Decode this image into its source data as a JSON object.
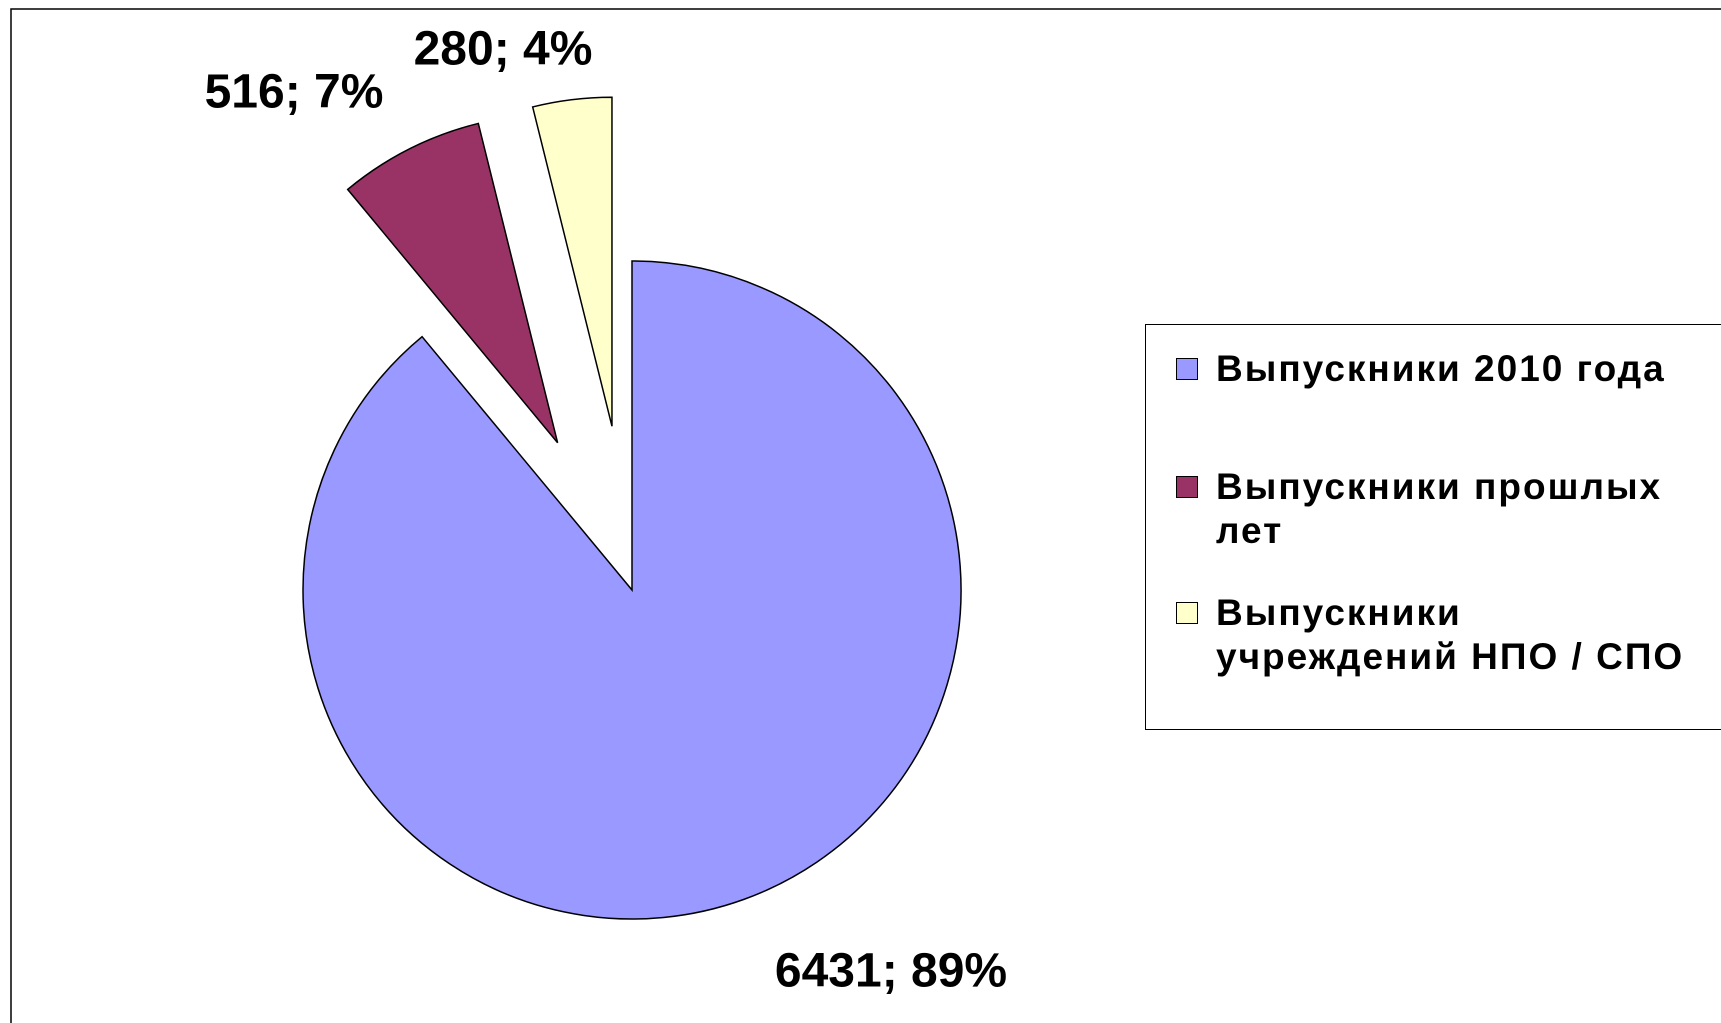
{
  "chart_data": {
    "type": "pie",
    "categories": [
      "Выпускники 2010 года",
      "Выпускники прошлых лет",
      "Выпускники учреждений НПО / СПО"
    ],
    "values": [
      6431,
      516,
      280
    ],
    "value_labels": [
      "6431; 89%",
      "516; 7%",
      "280; 4%"
    ],
    "colors": [
      "#9999ff",
      "#993366",
      "#ffffcc"
    ],
    "legend": "right"
  }
}
